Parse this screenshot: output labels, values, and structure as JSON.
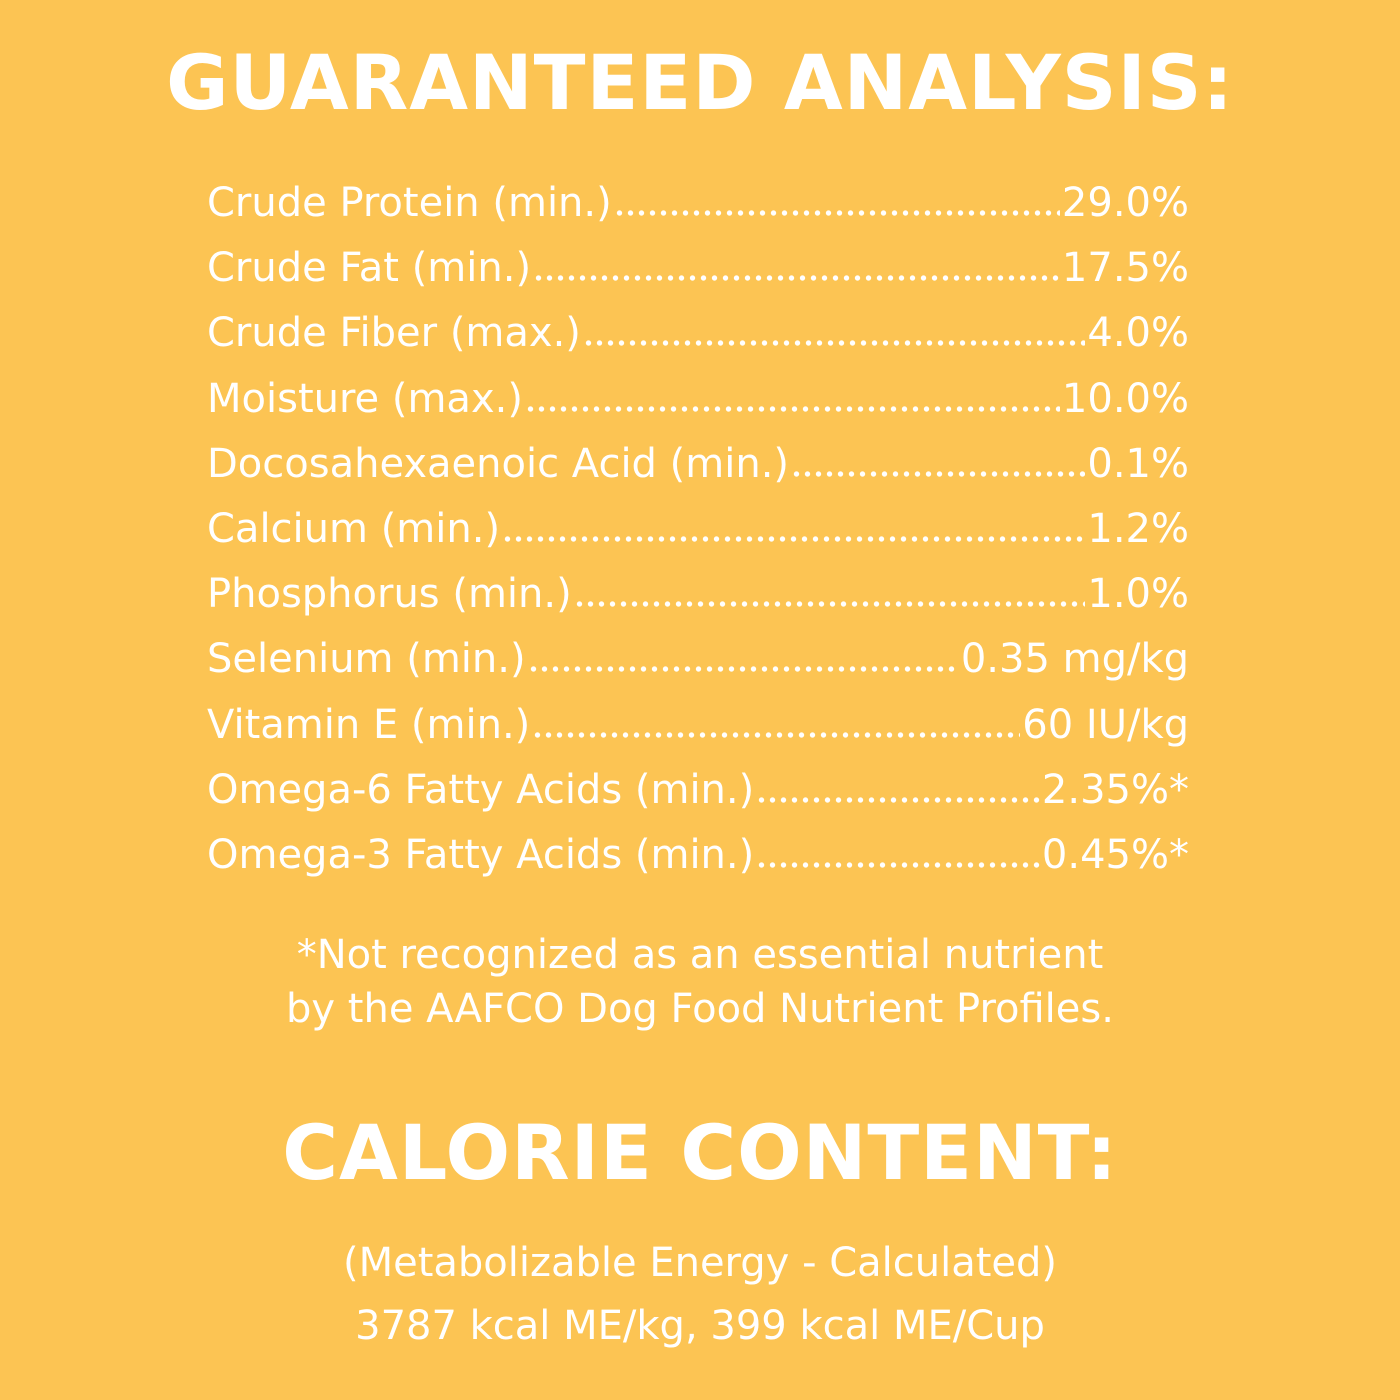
{
  "title": "GUARANTEED ANALYSIS:",
  "rows": [
    {
      "label": "Crude Protein (min.)",
      "value": "29.0%"
    },
    {
      "label": "Crude Fat (min.)",
      "value": "17.5%"
    },
    {
      "label": "Crude Fiber (max.)",
      "value": "4.0%"
    },
    {
      "label": "Moisture (max.)",
      "value": "10.0%"
    },
    {
      "label": "Docosahexaenoic Acid (min.)",
      "value": "0.1%"
    },
    {
      "label": "Calcium (min.)",
      "value": "1.2%"
    },
    {
      "label": "Phosphorus (min.)",
      "value": "1.0%"
    },
    {
      "label": "Selenium (min.)",
      "value": "0.35 mg/kg"
    },
    {
      "label": "Vitamin E (min.)",
      "value": "60 IU/kg"
    },
    {
      "label": "Omega-6 Fatty Acids (min.)",
      "value": "2.35%*"
    },
    {
      "label": "Omega-3 Fatty Acids (min.)",
      "value": "0.45%*"
    }
  ],
  "footnote": [
    "*Not recognized as an essential nutrient",
    "by the AAFCO Dog Food Nutrient Profiles."
  ],
  "calorie": {
    "title": "CALORIE CONTENT:",
    "lines": [
      "(Metabolizable Energy - Calculated)",
      "3787 kcal ME/kg, 399 kcal ME/Cup"
    ]
  }
}
